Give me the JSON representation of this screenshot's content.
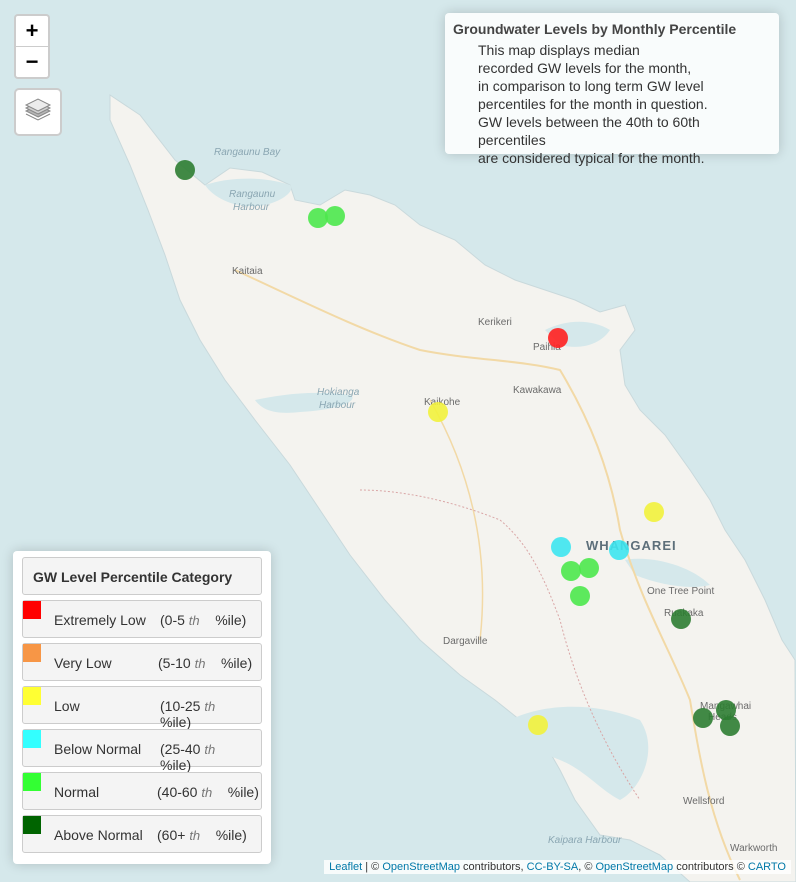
{
  "map": {
    "places": [
      {
        "name": "Kaitaia"
      },
      {
        "name": "Kerikeri"
      },
      {
        "name": "Paihia"
      },
      {
        "name": "Kawakawa"
      },
      {
        "name": "Kaikohe"
      },
      {
        "name": "One Tree Point"
      },
      {
        "name": "Ruakaka"
      },
      {
        "name": "Dargaville"
      },
      {
        "name": "Mangawhai"
      },
      {
        "name": "Heads"
      },
      {
        "name": "Wellsford"
      },
      {
        "name": "Warkworth"
      }
    ],
    "city": "WHANGAREI",
    "water_labels": [
      "Rangaunu Bay",
      "Rangaunu",
      "Harbour",
      "Hokianga",
      "Harbour",
      "Kaipara Harbour"
    ],
    "sites": [
      {
        "category": "above_normal"
      },
      {
        "category": "normal"
      },
      {
        "category": "normal"
      },
      {
        "category": "extremely_low"
      },
      {
        "category": "low"
      },
      {
        "category": "low"
      },
      {
        "category": "below_normal"
      },
      {
        "category": "below_normal"
      },
      {
        "category": "normal"
      },
      {
        "category": "normal"
      },
      {
        "category": "normal"
      },
      {
        "category": "above_normal"
      },
      {
        "category": "low"
      },
      {
        "category": "above_normal"
      },
      {
        "category": "above_normal"
      },
      {
        "category": "above_normal"
      }
    ]
  },
  "zoom": {
    "in_label": "+",
    "out_label": "−"
  },
  "layers_icon": "layers-icon",
  "info": {
    "title": "Groundwater Levels by Monthly Percentile",
    "lines": [
      "This map displays median",
      "recorded GW levels for the month,",
      "in comparison to long term GW level",
      "percentiles for the month in question.",
      "GW levels between the 40th to 60th percentiles",
      "are considered typical for the month."
    ]
  },
  "legend": {
    "title": "GW Level Percentile Category",
    "items": [
      {
        "key": "extremely_low",
        "label": "Extremely Low",
        "range_open": "(0-5",
        "th": "th",
        "range_close": "%ile)",
        "color": "#ff0000"
      },
      {
        "key": "very_low",
        "label": "Very Low",
        "range_open": "(5-10",
        "th": "th",
        "range_close": "%ile)",
        "color": "#f79646"
      },
      {
        "key": "low",
        "label": "Low",
        "range_open": "(10-25",
        "th": "th",
        "range_close": "%ile)",
        "color": "#ffff33"
      },
      {
        "key": "below_normal",
        "label": "Below Normal",
        "range_open": "(25-40",
        "th": "th",
        "range_close": "%ile)",
        "color": "#33ffff"
      },
      {
        "key": "normal",
        "label": "Normal",
        "range_open": "(40-60",
        "th": "th",
        "range_close": "%ile)",
        "color": "#33ff33"
      },
      {
        "key": "above_normal",
        "label": "Above Normal",
        "range_open": "(60+",
        "th": "th",
        "range_close": "%ile)",
        "color": "#006400"
      }
    ]
  },
  "marker_colors": {
    "extremely_low": "#ff2020",
    "very_low": "#f79646",
    "low": "#f2f23c",
    "below_normal": "#3de6f0",
    "normal": "#4de84d",
    "above_normal": "#2e7d32"
  },
  "attribution": {
    "leaflet": "Leaflet",
    "sep1": " | © ",
    "osm1": "OpenStreetMap",
    "mid1": " contributors, ",
    "ccbysa": "CC-BY-SA",
    "sep2": ", © ",
    "osm2": "OpenStreetMap",
    "mid2": " contributors © ",
    "carto": "CARTO"
  }
}
